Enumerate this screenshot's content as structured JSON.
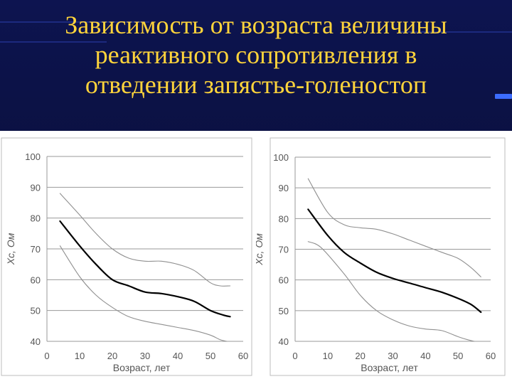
{
  "title_lines": [
    "Зависимость от возраста величины",
    "реактивного сопротивления в",
    "отведении запястье-голеностоп"
  ],
  "colors": {
    "background": "#0b1146",
    "title": "#ffd43b",
    "accent": "#3c6cff"
  },
  "chart_data": [
    {
      "type": "line",
      "title": "",
      "xlabel": "Возраст, лет",
      "ylabel": "Xc, Ом",
      "xlim": [
        0,
        60
      ],
      "ylim": [
        40,
        100
      ],
      "xticks": [
        0,
        10,
        20,
        30,
        40,
        50,
        60
      ],
      "yticks": [
        40,
        50,
        60,
        70,
        80,
        90,
        100
      ],
      "grid": true,
      "series": [
        {
          "role": "upper",
          "color": "#909090",
          "points": [
            [
              4,
              88
            ],
            [
              10,
              81
            ],
            [
              15,
              75
            ],
            [
              20,
              70
            ],
            [
              25,
              67
            ],
            [
              30,
              66
            ],
            [
              35,
              66
            ],
            [
              40,
              65
            ],
            [
              45,
              63
            ],
            [
              50,
              59
            ],
            [
              53,
              58
            ],
            [
              56,
              58
            ]
          ]
        },
        {
          "role": "mean",
          "color": "#000000",
          "points": [
            [
              4,
              79
            ],
            [
              10,
              71
            ],
            [
              15,
              65
            ],
            [
              20,
              60
            ],
            [
              25,
              58
            ],
            [
              30,
              56
            ],
            [
              35,
              55.5
            ],
            [
              40,
              54.5
            ],
            [
              45,
              53
            ],
            [
              50,
              50
            ],
            [
              54,
              48.5
            ],
            [
              56,
              48
            ]
          ]
        },
        {
          "role": "lower",
          "color": "#909090",
          "points": [
            [
              4,
              71
            ],
            [
              10,
              61
            ],
            [
              15,
              55
            ],
            [
              20,
              51
            ],
            [
              25,
              48
            ],
            [
              30,
              46.5
            ],
            [
              35,
              45.5
            ],
            [
              40,
              44.5
            ],
            [
              45,
              43.5
            ],
            [
              50,
              42
            ],
            [
              53,
              40.5
            ],
            [
              55,
              40
            ]
          ]
        }
      ]
    },
    {
      "type": "line",
      "title": "",
      "xlabel": "Возраст, лет",
      "ylabel": "Xc, Ом",
      "xlim": [
        0,
        60
      ],
      "ylim": [
        40,
        100
      ],
      "xticks": [
        0,
        10,
        20,
        30,
        40,
        50,
        60
      ],
      "yticks": [
        40,
        50,
        60,
        70,
        80,
        90,
        100
      ],
      "grid": true,
      "series": [
        {
          "role": "upper",
          "color": "#909090",
          "points": [
            [
              4,
              93
            ],
            [
              10,
              82
            ],
            [
              15,
              78
            ],
            [
              20,
              77
            ],
            [
              25,
              76.5
            ],
            [
              30,
              75
            ],
            [
              35,
              73
            ],
            [
              40,
              71
            ],
            [
              45,
              69
            ],
            [
              50,
              67
            ],
            [
              54,
              64
            ],
            [
              57,
              61
            ]
          ]
        },
        {
          "role": "mean",
          "color": "#000000",
          "points": [
            [
              4,
              83
            ],
            [
              10,
              74.5
            ],
            [
              15,
              69
            ],
            [
              20,
              65.5
            ],
            [
              25,
              62.5
            ],
            [
              30,
              60.5
            ],
            [
              35,
              59
            ],
            [
              40,
              57.5
            ],
            [
              45,
              56
            ],
            [
              50,
              54
            ],
            [
              54,
              52
            ],
            [
              57,
              49.5
            ]
          ]
        },
        {
          "role": "lower",
          "color": "#909090",
          "points": [
            [
              4,
              72.5
            ],
            [
              8,
              70.5
            ],
            [
              15,
              62
            ],
            [
              20,
              55
            ],
            [
              25,
              50
            ],
            [
              30,
              47
            ],
            [
              35,
              45
            ],
            [
              40,
              44
            ],
            [
              45,
              43.5
            ],
            [
              50,
              41.5
            ],
            [
              53,
              40.5
            ],
            [
              55,
              40
            ]
          ]
        }
      ]
    }
  ]
}
